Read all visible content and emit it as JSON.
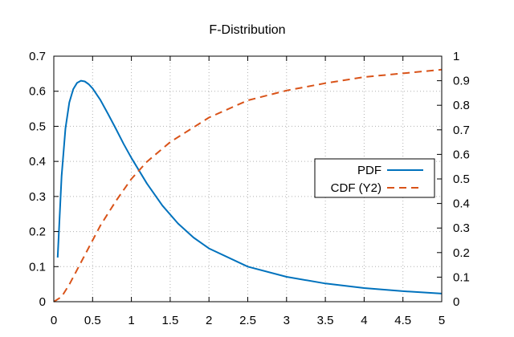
{
  "chart_data": {
    "type": "line",
    "title": "F-Distribution",
    "xlabel": "",
    "ylabel": "",
    "y2label": "",
    "xlim": [
      0,
      5
    ],
    "ylim": [
      0,
      0.7
    ],
    "y2lim": [
      0,
      1
    ],
    "x_ticks": [
      "0",
      "0.5",
      "1",
      "1.5",
      "2",
      "2.5",
      "3",
      "3.5",
      "4",
      "4.5",
      "5"
    ],
    "y_ticks": [
      "0",
      "0.1",
      "0.2",
      "0.3",
      "0.4",
      "0.5",
      "0.6",
      "0.7"
    ],
    "y2_ticks": [
      "0",
      "0.1",
      "0.2",
      "0.3",
      "0.4",
      "0.5",
      "0.6",
      "0.7",
      "0.8",
      "0.9",
      "1"
    ],
    "grid": true,
    "legend_position": "right",
    "series": [
      {
        "name": "PDF",
        "axis": "y",
        "color": "#0072bd",
        "style": "solid",
        "x": [
          0.05,
          0.1,
          0.15,
          0.2,
          0.25,
          0.3,
          0.35,
          0.4,
          0.45,
          0.5,
          0.6,
          0.7,
          0.8,
          0.9,
          1.0,
          1.2,
          1.4,
          1.6,
          1.8,
          2.0,
          2.5,
          3.0,
          3.5,
          4.0,
          4.5,
          5.0
        ],
        "values": [
          0.126,
          0.358,
          0.494,
          0.568,
          0.606,
          0.624,
          0.63,
          0.628,
          0.62,
          0.608,
          0.575,
          0.535,
          0.493,
          0.45,
          0.41,
          0.337,
          0.274,
          0.223,
          0.183,
          0.152,
          0.1,
          0.071,
          0.052,
          0.039,
          0.03,
          0.023
        ]
      },
      {
        "name": "CDF (Y2)",
        "axis": "y2",
        "color": "#d95319",
        "style": "dashed",
        "x": [
          0.0,
          0.1,
          0.2,
          0.3,
          0.4,
          0.5,
          0.6,
          0.8,
          1.0,
          1.2,
          1.5,
          2.0,
          2.5,
          3.0,
          3.5,
          4.0,
          4.5,
          5.0
        ],
        "values": [
          0.0,
          0.02,
          0.07,
          0.13,
          0.19,
          0.25,
          0.31,
          0.41,
          0.5,
          0.57,
          0.65,
          0.75,
          0.82,
          0.86,
          0.89,
          0.915,
          0.93,
          0.945
        ]
      }
    ]
  }
}
